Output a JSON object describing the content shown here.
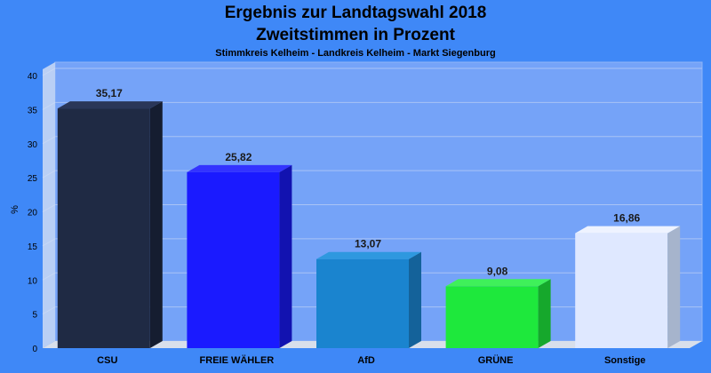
{
  "chart_data": {
    "type": "bar",
    "title": "Ergebnis zur Landtagswahl 2018",
    "subtitle": "Zweitstimmen in Prozent",
    "caption": "Stimmkreis Kelheim - Landkreis Kelheim - Markt Siegenburg",
    "ylabel": "%",
    "xlabel": "",
    "ylim": [
      0,
      40
    ],
    "yticks": [
      0,
      5,
      10,
      15,
      20,
      25,
      30,
      35,
      40
    ],
    "grid": true,
    "categories": [
      "CSU",
      "FREIE WÄHLER",
      "AfD",
      "GRÜNE",
      "Sonstige"
    ],
    "values": [
      35.17,
      25.82,
      13.07,
      9.08,
      16.86
    ],
    "value_labels": [
      "35,17",
      "25,82",
      "13,07",
      "9,08",
      "16,86"
    ],
    "colors": [
      "#1f2a44",
      "#1a1aff",
      "#1a84cf",
      "#1ee83c",
      "#dfe8ff"
    ],
    "side_colors": [
      "#151d30",
      "#1212b0",
      "#14629a",
      "#16a82c",
      "#a6b4cc"
    ],
    "top_colors": [
      "#2a3658",
      "#3333ff",
      "#2e98df",
      "#3ff05a",
      "#eef3ff"
    ]
  }
}
